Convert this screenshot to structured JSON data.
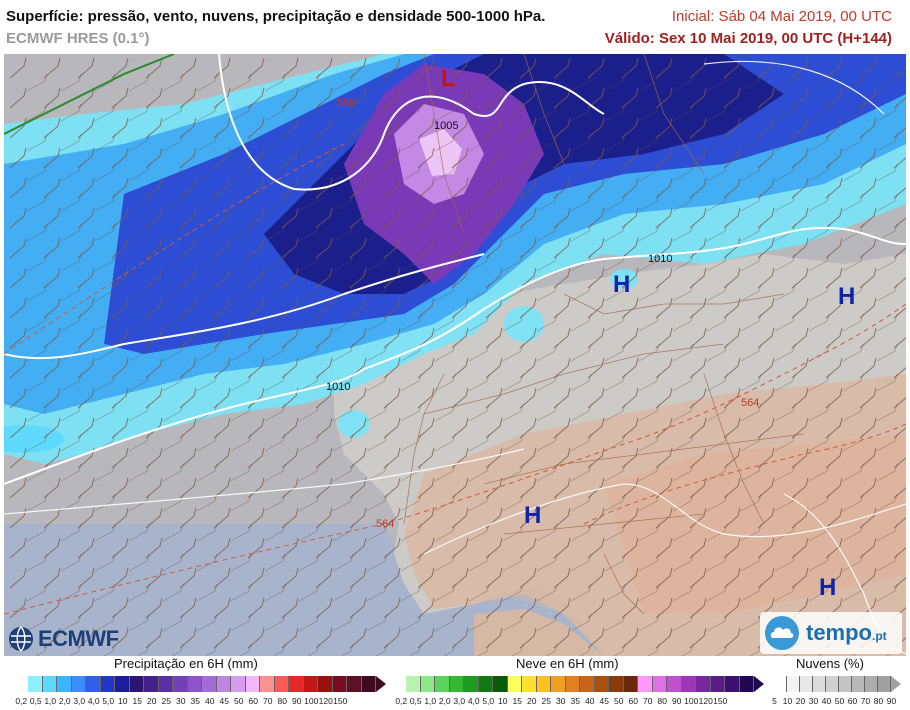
{
  "header": {
    "title": "Superfície: pressão, vento, nuvens, precipitação e densidade 500-1000 hPa.",
    "model": "ECMWF HRES (0.1°)",
    "initial": "Inicial: Sáb 04 Mai 2019, 00 UTC",
    "valid": "Válido: Sex 10 Mai 2019, 00 UTC (H+144)"
  },
  "map": {
    "pressure_centers": [
      {
        "label": "L",
        "color": "#cc1111"
      },
      {
        "label": "H",
        "color": "#1122aa"
      },
      {
        "label": "H",
        "color": "#1122aa"
      },
      {
        "label": "H",
        "color": "#1122aa"
      },
      {
        "label": "H",
        "color": "#1122aa"
      }
    ],
    "isobar_labels": [
      "1005",
      "1010",
      "1010"
    ],
    "thickness_labels": [
      "558",
      "564",
      "564"
    ]
  },
  "logos": {
    "ecmwf": "ECMWF",
    "tempo": "tempo",
    "tempo_suffix": ".pt"
  },
  "legend": {
    "precip": {
      "title": "Precipitação en 6H (mm)",
      "colors": [
        "#8ef0ff",
        "#5cd9ff",
        "#3cb4ff",
        "#3a8cff",
        "#2f60e6",
        "#2236c8",
        "#1a1e9a",
        "#2c1470",
        "#44208c",
        "#5c2ea6",
        "#7440b8",
        "#8c54c8",
        "#a66ad6",
        "#c084e4",
        "#d89cee",
        "#f0b8f6",
        "#ff9090",
        "#ff5a5a",
        "#e62828",
        "#c01818",
        "#9a1010",
        "#7a0c20",
        "#5c1028",
        "#3e0a20"
      ],
      "ticks": [
        "0,2",
        "0,5",
        "1,0",
        "2,0",
        "3,0",
        "4,0",
        "5,0",
        "10",
        "15",
        "20",
        "25",
        "30",
        "35",
        "40",
        "45",
        "50",
        "60",
        "70",
        "80",
        "90",
        "100",
        "120",
        "150"
      ]
    },
    "snow": {
      "title": "Neve en 6H (mm)",
      "colors": [
        "#b8f4b0",
        "#8ee88a",
        "#5cd45c",
        "#34b834",
        "#1e9a1e",
        "#127a12",
        "#0a5a0a",
        "#ffff60",
        "#ffe030",
        "#ffc020",
        "#f0a020",
        "#e08020",
        "#c86418",
        "#a85010",
        "#883c0c",
        "#6a2a0a",
        "#ff99ff",
        "#e070e8",
        "#c050d0",
        "#9a38b8",
        "#7a28a0",
        "#5a1a88",
        "#3c1070",
        "#200850"
      ],
      "ticks": [
        "0,2",
        "0,5",
        "1,0",
        "2,0",
        "3,0",
        "4,0",
        "5,0",
        "10",
        "15",
        "20",
        "25",
        "30",
        "35",
        "40",
        "45",
        "50",
        "60",
        "70",
        "80",
        "90",
        "100",
        "120",
        "150"
      ]
    },
    "clouds": {
      "title": "Nuvens (%)",
      "colors": [
        "#ffffff",
        "#f4f4f4",
        "#e8e8e8",
        "#dcdcdc",
        "#d0d0d0",
        "#c4c4c4",
        "#b8b8b8",
        "#acacac",
        "#a0a0a0"
      ],
      "ticks": [
        "5",
        "10",
        "20",
        "30",
        "40",
        "50",
        "60",
        "70",
        "80",
        "90"
      ]
    }
  }
}
